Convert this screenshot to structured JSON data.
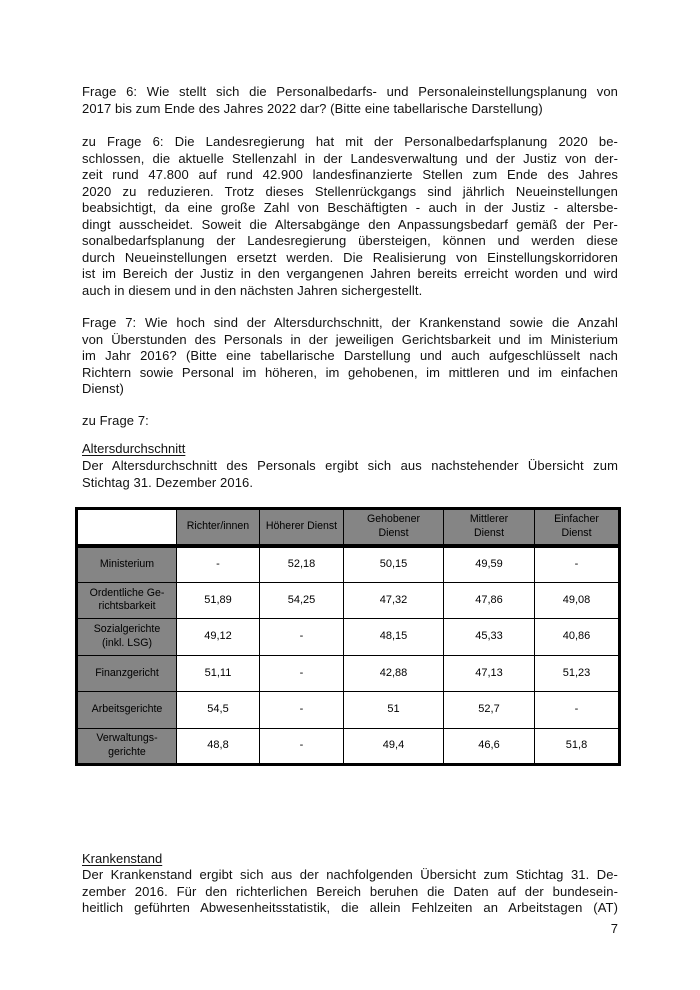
{
  "page": {
    "number": "7"
  },
  "content": {
    "frage6_question": [
      "Frage 6: Wie stellt sich die Personalbedarfs- und Personaleinstellungsplanung von",
      "2017 bis zum Ende des Jahres 2022 dar? (Bitte eine tabellarische Darstellung)"
    ],
    "frage6_answer": [
      "zu Frage 6: Die Landesregierung hat mit der Personalbedarfsplanung 2020 be-",
      "schlossen, die aktuelle Stellenzahl in der Landesverwaltung und der Justiz von der-",
      "zeit rund 47.800 auf rund 42.900 landesfinanzierte Stellen zum Ende des Jahres",
      "2020 zu reduzieren. Trotz dieses Stellenrückgangs sind jährlich Neueinstellungen",
      "beabsichtigt, da eine große Zahl von Beschäftigten - auch in der Justiz - altersbe-",
      "dingt ausscheidet. Soweit die Altersabgänge den Anpassungsbedarf gemäß der Per-",
      "sonalbedarfsplanung der Landesregierung übersteigen, können und werden diese",
      "durch Neueinstellungen ersetzt werden. Die Realisierung von Einstellungskorridoren",
      "ist im Bereich der Justiz in den vergangenen Jahren bereits erreicht worden und wird",
      "auch in diesem und in den nächsten Jahren sichergestellt."
    ],
    "frage7_question": [
      "Frage 7: Wie hoch sind der Altersdurchschnitt, der Krankenstand sowie die Anzahl",
      "von Überstunden des Personals in der jeweiligen Gerichtsbarkeit und im Ministerium",
      "im Jahr 2016? (Bitte eine tabellarische Darstellung und auch aufgeschlüsselt nach",
      "Richtern sowie Personal im höheren, im gehobenen, im mittleren und im einfachen",
      "Dienst)"
    ],
    "zu_frage7": [
      "zu Frage 7:"
    ],
    "altersdurchschnitt_heading": "Altersdurchschnitt",
    "altersdurchschnitt_intro": [
      "Der Altersdurchschnitt des Personals ergibt sich aus nachstehender Übersicht zum",
      "Stichtag 31. Dezember 2016."
    ],
    "krankenstand_heading": "Krankenstand",
    "krankenstand_intro": [
      "Der Krankenstand ergibt sich aus der nachfolgenden Übersicht zum Stichtag 31. De-",
      "zember 2016. Für den richterlichen Bereich beruhen die Daten auf der bundesein-",
      "heitlich geführten Abwesenheitsstatistik, die allein Fehlzeiten an Arbeitstagen (AT)"
    ]
  },
  "chart_data": {
    "type": "table",
    "title": "Altersdurchschnitt zum Stichtag 31. Dezember 2016",
    "col_headers": [
      "",
      "Richter/innen",
      "Höherer Dienst",
      "Gehobener\nDienst",
      "Mittlerer\nDienst",
      "Einfacher\nDienst"
    ],
    "rows": [
      {
        "label": "Ministerium",
        "values": [
          "-",
          "52,18",
          "50,15",
          "49,59",
          "-"
        ]
      },
      {
        "label": "Ordentliche Ge-\nrichtsbarkeit",
        "values": [
          "51,89",
          "54,25",
          "47,32",
          "47,86",
          "49,08"
        ]
      },
      {
        "label": "Sozialgerichte\n(inkl. LSG)",
        "values": [
          "49,12",
          "-",
          "48,15",
          "45,33",
          "40,86"
        ]
      },
      {
        "label": "Finanzgericht",
        "values": [
          "51,11",
          "-",
          "42,88",
          "47,13",
          "51,23"
        ]
      },
      {
        "label": "Arbeitsgerichte",
        "values": [
          "54,5",
          "-",
          "51",
          "52,7",
          "-"
        ]
      },
      {
        "label": "Verwaltungs-\ngerichte",
        "values": [
          "48,8",
          "-",
          "49,4",
          "46,6",
          "51,8"
        ]
      }
    ]
  },
  "colors": {
    "cell_gray": "#858585",
    "border": "#000000",
    "paper": "#ffffff",
    "text": "#111111"
  }
}
